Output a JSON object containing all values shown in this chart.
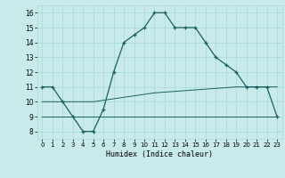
{
  "xlabel": "Humidex (Indice chaleur)",
  "bg_color": "#c8eaea",
  "grid_color": "#a8d8d8",
  "line_color": "#1a6060",
  "xlim": [
    -0.5,
    23.5
  ],
  "ylim": [
    7.5,
    16.5
  ],
  "xticks": [
    0,
    1,
    2,
    3,
    4,
    5,
    6,
    7,
    8,
    9,
    10,
    11,
    12,
    13,
    14,
    15,
    16,
    17,
    18,
    19,
    20,
    21,
    22,
    23
  ],
  "yticks": [
    8,
    9,
    10,
    11,
    12,
    13,
    14,
    15,
    16
  ],
  "hours": [
    0,
    1,
    2,
    3,
    4,
    5,
    6,
    7,
    8,
    9,
    10,
    11,
    12,
    13,
    14,
    15,
    16,
    17,
    18,
    19,
    20,
    21,
    22,
    23
  ],
  "humidex": [
    11,
    11,
    10,
    9,
    8,
    8,
    9.5,
    12,
    14,
    14.5,
    15,
    16,
    16,
    15,
    15,
    15,
    14,
    13,
    12.5,
    12,
    11,
    11,
    11,
    9
  ],
  "flat_low": [
    9,
    9,
    9,
    9,
    9,
    9,
    9,
    9,
    9,
    9,
    9,
    9,
    9,
    9,
    9,
    9,
    9,
    9,
    9,
    9,
    9,
    9,
    9,
    9
  ],
  "flat_mid": [
    10,
    10,
    10,
    10,
    10,
    10,
    10.1,
    10.2,
    10.3,
    10.4,
    10.5,
    10.6,
    10.65,
    10.7,
    10.75,
    10.8,
    10.85,
    10.9,
    10.95,
    11,
    11,
    11,
    11,
    11
  ]
}
